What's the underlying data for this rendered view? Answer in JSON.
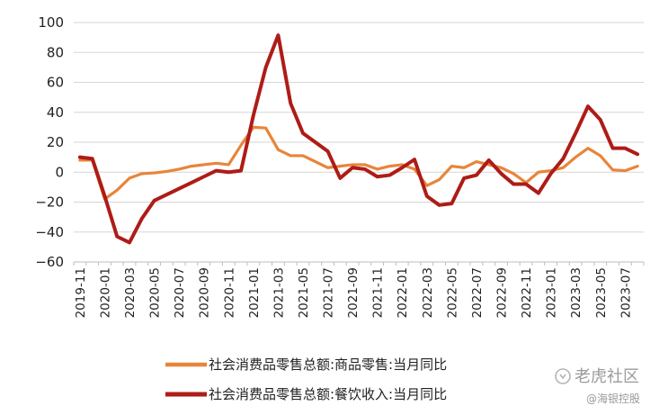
{
  "chart_data": {
    "type": "line",
    "title": "",
    "xlabel": "",
    "ylabel": "",
    "ylim": [
      -60,
      100
    ],
    "yticks": [
      100,
      80,
      60,
      40,
      20,
      0,
      -20,
      -40,
      -60
    ],
    "grid": "horizontal",
    "legend_position": "bottom",
    "x": [
      "2019-11",
      "2019-12",
      "2020-01",
      "2020-02",
      "2020-03",
      "2020-04",
      "2020-05",
      "2020-06",
      "2020-07",
      "2020-08",
      "2020-09",
      "2020-10",
      "2020-11",
      "2020-12",
      "2021-01",
      "2021-02",
      "2021-03",
      "2021-04",
      "2021-05",
      "2021-06",
      "2021-07",
      "2021-08",
      "2021-09",
      "2021-10",
      "2021-11",
      "2021-12",
      "2022-01",
      "2022-02",
      "2022-03",
      "2022-04",
      "2022-05",
      "2022-06",
      "2022-07",
      "2022-08",
      "2022-09",
      "2022-10",
      "2022-11",
      "2022-12",
      "2023-01",
      "2023-02",
      "2023-03",
      "2023-04",
      "2023-05",
      "2023-06",
      "2023-07",
      "2023-08"
    ],
    "xtick_labels": [
      "2019-11",
      "2020-01",
      "2020-03",
      "2020-05",
      "2020-07",
      "2020-09",
      "2020-11",
      "2021-01",
      "2021-03",
      "2021-05",
      "2021-07",
      "2021-09",
      "2021-11",
      "2022-01",
      "2022-03",
      "2022-05",
      "2022-07",
      "2022-09",
      "2022-11",
      "2023-01",
      "2023-03",
      "2023-05",
      "2023-07"
    ],
    "series": [
      {
        "name": "社会消费品零售总额:商品零售:当月同比",
        "color": "#E8853A",
        "values": [
          8,
          8,
          -18,
          -12,
          -4,
          -1,
          -0.5,
          0.5,
          2,
          4,
          5,
          6,
          5,
          18,
          30,
          29.5,
          15,
          11,
          11,
          7,
          3,
          4,
          5,
          5,
          2,
          4,
          5,
          2,
          -9,
          -5,
          4,
          3,
          7,
          5,
          3,
          -1,
          -7,
          0,
          1,
          3,
          10,
          16,
          11,
          1.5,
          1,
          4
        ]
      },
      {
        "name": "社会消费品零售总额:餐饮收入:当月同比",
        "color": "#AE1C17",
        "values": [
          10,
          9,
          -16,
          -43,
          -47,
          -31,
          -19,
          -15,
          -11,
          -7,
          -3,
          1,
          0,
          1,
          38,
          70,
          91.5,
          46,
          26,
          20,
          14,
          -4,
          3,
          2,
          -3,
          -2,
          3,
          8.5,
          -16,
          -22,
          -21,
          -4,
          -2,
          8,
          -1,
          -8,
          -8,
          -14,
          -1,
          9,
          26,
          44,
          35,
          16,
          16,
          12
        ]
      }
    ]
  },
  "watermark": {
    "brand": "老虎社区",
    "handle": "@海银控股"
  }
}
